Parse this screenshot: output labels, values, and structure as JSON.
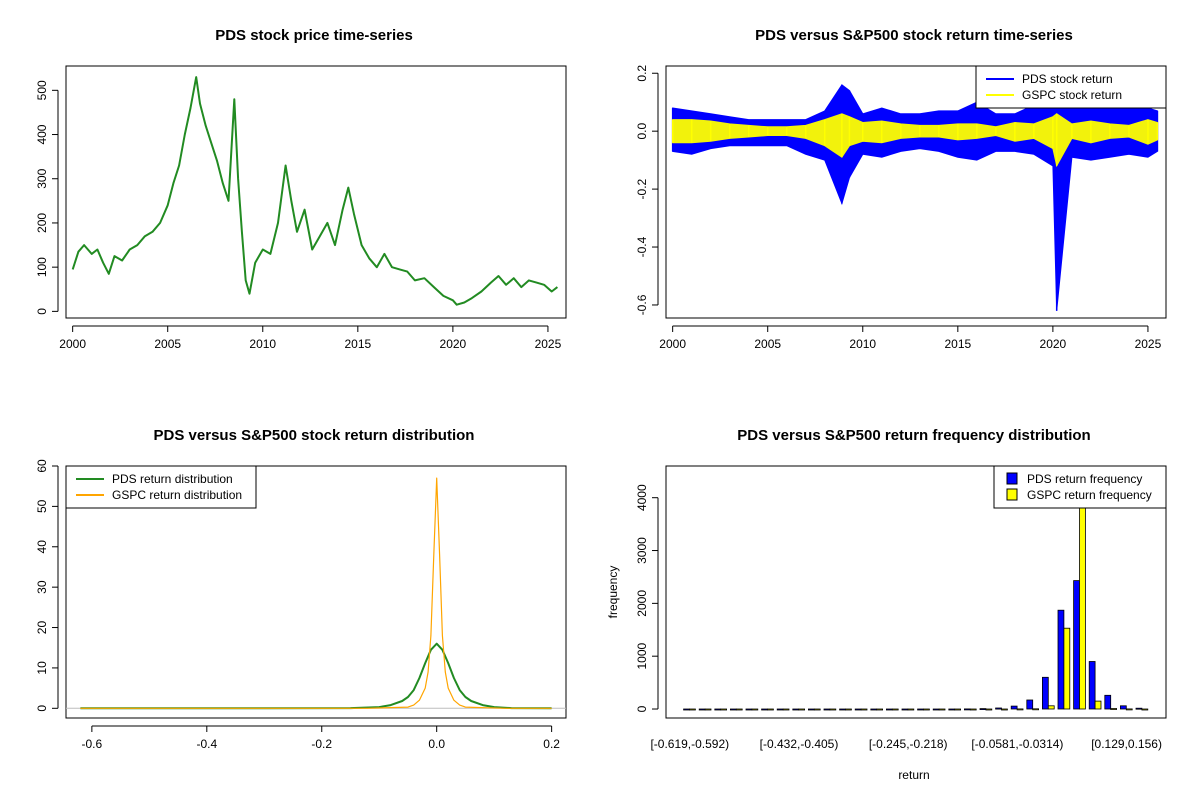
{
  "chart_data": [
    {
      "id": "price",
      "type": "line",
      "title": "PDS stock price time-series",
      "xlabel": "",
      "ylabel": "",
      "xlim": [
        1999.65,
        2025.95
      ],
      "ylim": [
        -15,
        555
      ],
      "xticks": [
        2000,
        2005,
        2010,
        2015,
        2020,
        2025
      ],
      "yticks": [
        0,
        100,
        200,
        300,
        400,
        500
      ],
      "series": [
        {
          "color": "#228B22",
          "x": [
            2000.0,
            2000.3,
            2000.6,
            2001.0,
            2001.3,
            2001.6,
            2001.9,
            2002.2,
            2002.6,
            2003.0,
            2003.4,
            2003.8,
            2004.2,
            2004.6,
            2005.0,
            2005.3,
            2005.6,
            2005.9,
            2006.2,
            2006.5,
            2006.7,
            2007.0,
            2007.3,
            2007.6,
            2007.9,
            2008.2,
            2008.5,
            2008.7,
            2008.9,
            2009.1,
            2009.3,
            2009.6,
            2010.0,
            2010.4,
            2010.8,
            2011.2,
            2011.5,
            2011.8,
            2012.2,
            2012.6,
            2013.0,
            2013.4,
            2013.8,
            2014.2,
            2014.5,
            2014.8,
            2015.2,
            2015.6,
            2016.0,
            2016.4,
            2016.8,
            2017.2,
            2017.6,
            2018.0,
            2018.5,
            2019.0,
            2019.5,
            2020.0,
            2020.2,
            2020.6,
            2021.0,
            2021.5,
            2022.0,
            2022.4,
            2022.8,
            2023.2,
            2023.6,
            2024.0,
            2024.4,
            2024.8,
            2025.2,
            2025.5
          ],
          "values": [
            95,
            135,
            150,
            130,
            140,
            110,
            85,
            125,
            115,
            140,
            150,
            170,
            180,
            200,
            240,
            290,
            330,
            400,
            460,
            530,
            470,
            420,
            380,
            340,
            290,
            250,
            480,
            300,
            180,
            70,
            40,
            110,
            140,
            130,
            200,
            330,
            250,
            180,
            230,
            140,
            170,
            200,
            150,
            230,
            280,
            220,
            150,
            120,
            100,
            130,
            100,
            95,
            90,
            70,
            75,
            55,
            35,
            25,
            15,
            20,
            30,
            45,
            65,
            80,
            60,
            75,
            55,
            70,
            65,
            60,
            45,
            55
          ]
        }
      ]
    },
    {
      "id": "returns",
      "type": "line",
      "title": "PDS versus S&P500 stock return time-series",
      "xlabel": "",
      "ylabel": "",
      "xlim": [
        1999.65,
        2025.95
      ],
      "ylim": [
        -0.645,
        0.225
      ],
      "xticks": [
        2000,
        2005,
        2010,
        2015,
        2020,
        2025
      ],
      "yticks": [
        -0.6,
        -0.4,
        -0.2,
        0.0,
        0.2
      ],
      "ytick_labels": [
        "-0.6",
        "-0.4",
        "-0.2",
        "0.0",
        "0.2"
      ],
      "legend": {
        "position": "top-right",
        "entries": [
          {
            "label": "PDS stock return",
            "color": "#0000FF"
          },
          {
            "label": "GSPC stock return",
            "color": "#FFFF00"
          }
        ]
      },
      "series": [
        {
          "name": "PDS stock return",
          "color": "#0000FF",
          "x": [
            2000,
            2001,
            2002,
            2003,
            2004,
            2005,
            2006,
            2007,
            2008,
            2008.9,
            2009.3,
            2010,
            2011,
            2012,
            2013,
            2014,
            2015,
            2016,
            2017,
            2018,
            2019,
            2020,
            2020.2,
            2021,
            2022,
            2023,
            2024,
            2025,
            2025.5
          ],
          "max": [
            0.08,
            0.07,
            0.06,
            0.05,
            0.04,
            0.04,
            0.04,
            0.04,
            0.07,
            0.16,
            0.14,
            0.06,
            0.08,
            0.06,
            0.06,
            0.07,
            0.07,
            0.1,
            0.06,
            0.06,
            0.09,
            0.12,
            0.12,
            0.1,
            0.08,
            0.12,
            0.09,
            0.08,
            0.07
          ],
          "min": [
            -0.07,
            -0.08,
            -0.06,
            -0.05,
            -0.05,
            -0.05,
            -0.05,
            -0.08,
            -0.1,
            -0.25,
            -0.16,
            -0.08,
            -0.09,
            -0.07,
            -0.06,
            -0.07,
            -0.09,
            -0.1,
            -0.07,
            -0.07,
            -0.08,
            -0.12,
            -0.62,
            -0.09,
            -0.1,
            -0.09,
            -0.08,
            -0.09,
            -0.07
          ]
        },
        {
          "name": "GSPC stock return",
          "color": "#FFFF00",
          "x": [
            2000,
            2001,
            2002,
            2003,
            2004,
            2005,
            2006,
            2007,
            2008,
            2008.9,
            2009.3,
            2010,
            2011,
            2012,
            2013,
            2014,
            2015,
            2016,
            2017,
            2018,
            2019,
            2020,
            2020.2,
            2021,
            2022,
            2023,
            2024,
            2025,
            2025.5
          ],
          "max": [
            0.04,
            0.04,
            0.035,
            0.025,
            0.02,
            0.015,
            0.015,
            0.02,
            0.04,
            0.06,
            0.05,
            0.03,
            0.035,
            0.025,
            0.02,
            0.02,
            0.025,
            0.025,
            0.015,
            0.03,
            0.025,
            0.05,
            0.06,
            0.025,
            0.035,
            0.025,
            0.02,
            0.04,
            0.03
          ],
          "min": [
            -0.04,
            -0.04,
            -0.035,
            -0.025,
            -0.02,
            -0.015,
            -0.015,
            -0.025,
            -0.05,
            -0.09,
            -0.05,
            -0.035,
            -0.04,
            -0.025,
            -0.02,
            -0.02,
            -0.03,
            -0.025,
            -0.015,
            -0.035,
            -0.025,
            -0.06,
            -0.12,
            -0.025,
            -0.04,
            -0.025,
            -0.02,
            -0.045,
            -0.03
          ]
        }
      ]
    },
    {
      "id": "density",
      "type": "line",
      "title": "PDS versus S&P500 stock return distribution",
      "xlabel": "",
      "ylabel": "",
      "xlim": [
        -0.645,
        0.225
      ],
      "ylim": [
        -2.4,
        60
      ],
      "xticks": [
        -0.6,
        -0.4,
        -0.2,
        0.0,
        0.2
      ],
      "xtick_labels": [
        "-0.6",
        "-0.4",
        "-0.2",
        "0.0",
        "0.2"
      ],
      "yticks": [
        0,
        10,
        20,
        30,
        40,
        50,
        60
      ],
      "legend": {
        "position": "top-left",
        "entries": [
          {
            "label": "PDS return distribution",
            "color": "#228B22"
          },
          {
            "label": "GSPC return distribution",
            "color": "#FFA500"
          }
        ]
      },
      "series": [
        {
          "name": "PDS return distribution",
          "color": "#228B22",
          "x": [
            -0.62,
            -0.3,
            -0.15,
            -0.1,
            -0.08,
            -0.06,
            -0.05,
            -0.04,
            -0.03,
            -0.02,
            -0.01,
            0.0,
            0.01,
            0.02,
            0.03,
            0.04,
            0.05,
            0.06,
            0.08,
            0.1,
            0.13,
            0.2
          ],
          "values": [
            0,
            0,
            0.05,
            0.3,
            0.8,
            1.8,
            2.8,
            4.5,
            7.5,
            11.2,
            14.5,
            16.0,
            14.5,
            11.2,
            7.5,
            4.5,
            2.8,
            1.8,
            0.8,
            0.3,
            0.05,
            0
          ]
        },
        {
          "name": "GSPC return distribution",
          "color": "#FFA500",
          "x": [
            -0.62,
            -0.12,
            -0.05,
            -0.04,
            -0.03,
            -0.02,
            -0.015,
            -0.01,
            -0.005,
            0.0,
            0.005,
            0.01,
            0.015,
            0.02,
            0.03,
            0.04,
            0.05,
            0.12,
            0.2
          ],
          "values": [
            0,
            0,
            0.3,
            0.8,
            2.0,
            5.0,
            9.0,
            18.0,
            38.0,
            57.0,
            38.0,
            18.0,
            9.0,
            5.0,
            2.0,
            0.8,
            0.3,
            0,
            0
          ]
        }
      ]
    },
    {
      "id": "frequency",
      "type": "bar",
      "title": "PDS versus S&P500 return frequency distribution",
      "xlabel": "return",
      "ylabel": "frequency",
      "ylim": [
        -170,
        4600
      ],
      "yticks": [
        0,
        1000,
        2000,
        3000,
        4000
      ],
      "xtick_labels": [
        "[-0.619,-0.592)",
        "[-0.432,-0.405)",
        "[-0.245,-0.218)",
        "[-0.0581,-0.0314)",
        "[0.129,0.156)"
      ],
      "xtick_bins": [
        0,
        7,
        14,
        21,
        28
      ],
      "legend": {
        "position": "top-right",
        "entries": [
          {
            "label": "PDS return frequency",
            "color": "#0000FF"
          },
          {
            "label": "GSPC return frequency",
            "color": "#FFFF00"
          }
        ]
      },
      "bin_count": 30,
      "series": [
        {
          "name": "PDS return frequency",
          "color": "#0000FF",
          "values": [
            1,
            0,
            0,
            0,
            0,
            0,
            0,
            0,
            0,
            0,
            0,
            0,
            0,
            0,
            0,
            0,
            0,
            1,
            3,
            8,
            20,
            55,
            170,
            600,
            1870,
            2430,
            900,
            260,
            60,
            15
          ]
        },
        {
          "name": "GSPC return frequency",
          "color": "#FFFF00",
          "values": [
            0,
            0,
            0,
            0,
            0,
            0,
            0,
            0,
            0,
            0,
            0,
            0,
            0,
            0,
            0,
            0,
            0,
            0,
            0,
            0,
            1,
            2,
            5,
            60,
            1530,
            4100,
            150,
            10,
            2,
            0
          ]
        }
      ]
    }
  ]
}
